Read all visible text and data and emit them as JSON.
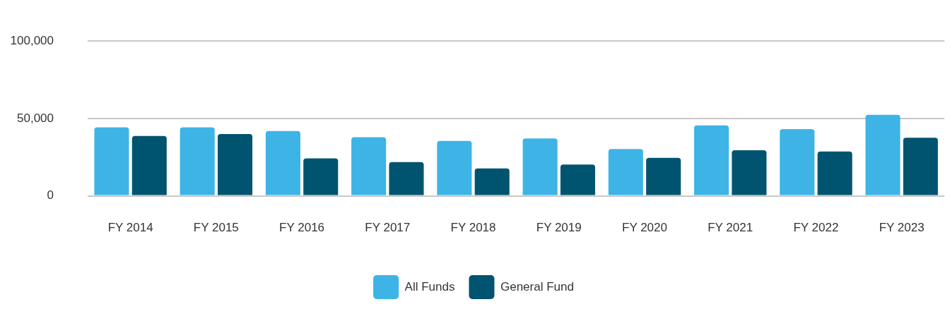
{
  "chart_data": {
    "type": "bar",
    "categories": [
      "FY 2014",
      "FY 2015",
      "FY 2016",
      "FY 2017",
      "FY 2018",
      "FY 2019",
      "FY 2020",
      "FY 2021",
      "FY 2022",
      "FY 2023"
    ],
    "series": [
      {
        "name": "All Funds",
        "color": "#3db4e5",
        "values": [
          44300,
          44300,
          41900,
          37900,
          35500,
          37100,
          30200,
          45500,
          43100,
          52400
        ]
      },
      {
        "name": "General Fund",
        "color": "#00546f",
        "values": [
          38700,
          39900,
          24200,
          21800,
          17700,
          20200,
          24600,
          29400,
          28600,
          37500
        ]
      }
    ],
    "ylim": [
      0,
      100000
    ],
    "yticks": [
      {
        "value": 0,
        "label": "0"
      },
      {
        "value": 50000,
        "label": "50,000"
      },
      {
        "value": 100000,
        "label": "100,000"
      }
    ],
    "grid": "y",
    "legend": "bottom"
  }
}
